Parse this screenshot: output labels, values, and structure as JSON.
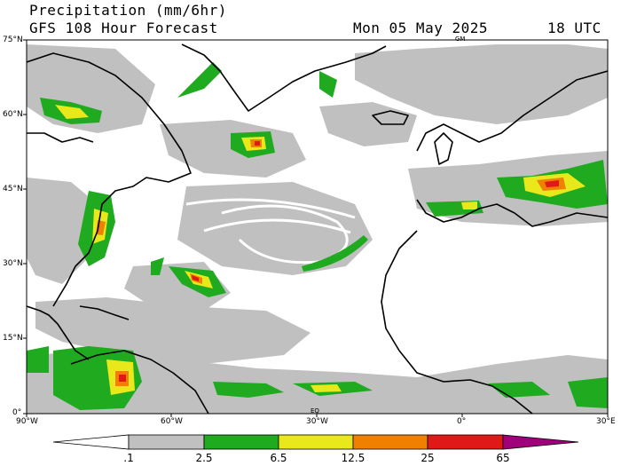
{
  "header": {
    "title": "Precipitation (mm/6hr)",
    "subtitle": "GFS 108 Hour Forecast",
    "valid_date": "Mon 05 May 2025",
    "valid_time": "18 UTC"
  },
  "map": {
    "lat_labels": [
      "75°N",
      "60°N",
      "45°N",
      "30°N",
      "15°N",
      "0°"
    ],
    "lon_labels": [
      "90°W",
      "60°W",
      "30°W",
      "0°",
      "30°E"
    ],
    "corner_marks": [
      "GM",
      "EQ"
    ],
    "colors": {
      "land_outline": "#000000",
      "ocean": "#ffffff"
    }
  },
  "colorbar": {
    "labels": [
      ".1",
      "2.5",
      "6.5",
      "12.5",
      "25",
      "65"
    ],
    "colors": [
      "#ffffff",
      "#c0c0c0",
      "#1faa1f",
      "#e8e81a",
      "#f08000",
      "#e01818",
      "#a0007a"
    ]
  }
}
